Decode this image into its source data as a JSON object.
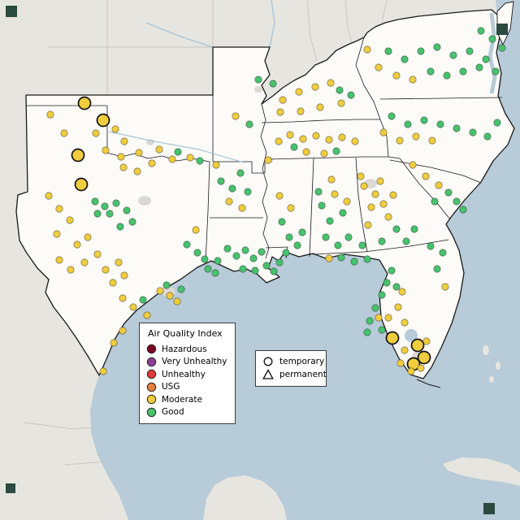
{
  "map": {
    "ocean_color": "#b7cbd8",
    "land_color": "#e7e5df",
    "land_border_color": "#c8c5bf",
    "focus_fill": "#fcfbf8",
    "focus_border_color": "#1a1a1a",
    "river_color": "#a9c6d7",
    "urban_color": "#dbd9d2",
    "corner_marker_color": "#2b4a40"
  },
  "aqi_colors": {
    "hazardous": "#7e0023",
    "very_unhealthy": "#8f3f97",
    "unhealthy": "#e03a3a",
    "usg": "#ea7e33",
    "moderate": "#f0cd3e",
    "good": "#47c36d"
  },
  "legend_aqi": {
    "title": "Air Quality Index",
    "items": [
      {
        "key": "hazardous",
        "label": "Hazardous"
      },
      {
        "key": "very_unhealthy",
        "label": "Very Unhealthy"
      },
      {
        "key": "unhealthy",
        "label": "Unhealthy"
      },
      {
        "key": "usg",
        "label": "USG"
      },
      {
        "key": "moderate",
        "label": "Moderate"
      },
      {
        "key": "good",
        "label": "Good"
      }
    ]
  },
  "legend_symbols": {
    "items": [
      {
        "symbol": "circle",
        "label": "temporary"
      },
      {
        "symbol": "triangle",
        "label": "permanent"
      }
    ]
  },
  "stations": [
    [
      104,
      127,
      "moderate",
      "t"
    ],
    [
      127,
      148,
      "moderate",
      "t"
    ],
    [
      96,
      191,
      "moderate",
      "t"
    ],
    [
      100,
      227,
      "moderate",
      "t"
    ],
    [
      483,
      416,
      "moderate",
      "t"
    ],
    [
      514,
      425,
      "moderate",
      "t"
    ],
    [
      522,
      440,
      "moderate",
      "t"
    ],
    [
      509,
      448,
      "moderate",
      "t"
    ],
    [
      62,
      141,
      "moderate"
    ],
    [
      79,
      164,
      "moderate"
    ],
    [
      118,
      164,
      "moderate"
    ],
    [
      142,
      159,
      "moderate"
    ],
    [
      153,
      174,
      "moderate"
    ],
    [
      130,
      185,
      "moderate"
    ],
    [
      149,
      193,
      "moderate"
    ],
    [
      171,
      188,
      "moderate"
    ],
    [
      196,
      184,
      "moderate"
    ],
    [
      152,
      206,
      "moderate"
    ],
    [
      169,
      211,
      "moderate"
    ],
    [
      187,
      201,
      "moderate"
    ],
    [
      212,
      196,
      "moderate"
    ],
    [
      234,
      194,
      "moderate"
    ],
    [
      60,
      241,
      "moderate"
    ],
    [
      73,
      257,
      "moderate"
    ],
    [
      86,
      271,
      "moderate"
    ],
    [
      70,
      288,
      "moderate"
    ],
    [
      95,
      301,
      "moderate"
    ],
    [
      108,
      292,
      "moderate"
    ],
    [
      120,
      313,
      "moderate"
    ],
    [
      104,
      323,
      "moderate"
    ],
    [
      87,
      332,
      "moderate"
    ],
    [
      73,
      320,
      "moderate"
    ],
    [
      130,
      332,
      "moderate"
    ],
    [
      146,
      323,
      "moderate"
    ],
    [
      153,
      339,
      "moderate"
    ],
    [
      139,
      348,
      "moderate"
    ],
    [
      151,
      367,
      "moderate"
    ],
    [
      164,
      378,
      "moderate"
    ],
    [
      181,
      388,
      "moderate"
    ],
    [
      151,
      407,
      "moderate"
    ],
    [
      140,
      422,
      "moderate"
    ],
    [
      127,
      457,
      "moderate"
    ],
    [
      197,
      358,
      "moderate"
    ],
    [
      209,
      364,
      "moderate"
    ],
    [
      218,
      371,
      "moderate"
    ],
    [
      241,
      283,
      "moderate"
    ],
    [
      266,
      203,
      "moderate"
    ],
    [
      282,
      248,
      "moderate"
    ],
    [
      290,
      143,
      "moderate"
    ],
    [
      298,
      256,
      "moderate"
    ],
    [
      330,
      197,
      "moderate"
    ],
    [
      343,
      174,
      "moderate"
    ],
    [
      357,
      166,
      "moderate"
    ],
    [
      373,
      171,
      "moderate"
    ],
    [
      389,
      167,
      "moderate"
    ],
    [
      405,
      172,
      "moderate"
    ],
    [
      421,
      169,
      "moderate"
    ],
    [
      437,
      174,
      "moderate"
    ],
    [
      377,
      187,
      "moderate"
    ],
    [
      399,
      189,
      "moderate"
    ],
    [
      348,
      123,
      "moderate"
    ],
    [
      368,
      113,
      "moderate"
    ],
    [
      388,
      107,
      "moderate"
    ],
    [
      407,
      102,
      "moderate"
    ],
    [
      370,
      137,
      "moderate"
    ],
    [
      394,
      132,
      "moderate"
    ],
    [
      420,
      127,
      "moderate"
    ],
    [
      345,
      138,
      "moderate"
    ],
    [
      358,
      256,
      "moderate"
    ],
    [
      344,
      241,
      "moderate"
    ],
    [
      412,
      239,
      "moderate"
    ],
    [
      427,
      248,
      "moderate"
    ],
    [
      408,
      221,
      "moderate"
    ],
    [
      448,
      229,
      "moderate"
    ],
    [
      462,
      239,
      "moderate"
    ],
    [
      457,
      255,
      "moderate"
    ],
    [
      472,
      251,
      "moderate"
    ],
    [
      478,
      267,
      "moderate"
    ],
    [
      453,
      277,
      "moderate"
    ],
    [
      444,
      217,
      "moderate"
    ],
    [
      468,
      223,
      "moderate"
    ],
    [
      484,
      240,
      "moderate"
    ],
    [
      508,
      203,
      "moderate"
    ],
    [
      524,
      217,
      "moderate"
    ],
    [
      540,
      228,
      "moderate"
    ],
    [
      472,
      163,
      "moderate"
    ],
    [
      492,
      173,
      "moderate"
    ],
    [
      512,
      168,
      "moderate"
    ],
    [
      532,
      173,
      "moderate"
    ],
    [
      488,
      93,
      "moderate"
    ],
    [
      508,
      98,
      "moderate"
    ],
    [
      466,
      83,
      "moderate"
    ],
    [
      452,
      61,
      "moderate"
    ],
    [
      405,
      318,
      "moderate"
    ],
    [
      495,
      359,
      "moderate"
    ],
    [
      490,
      378,
      "moderate"
    ],
    [
      478,
      391,
      "moderate"
    ],
    [
      498,
      397,
      "moderate"
    ],
    [
      548,
      353,
      "moderate"
    ],
    [
      466,
      391,
      "moderate"
    ],
    [
      498,
      431,
      "moderate"
    ],
    [
      493,
      447,
      "moderate"
    ],
    [
      506,
      457,
      "moderate"
    ],
    [
      518,
      453,
      "moderate"
    ],
    [
      525,
      420,
      "moderate"
    ],
    [
      219,
      187,
      "good"
    ],
    [
      246,
      198,
      "good"
    ],
    [
      117,
      248,
      "good"
    ],
    [
      129,
      254,
      "good"
    ],
    [
      143,
      250,
      "good"
    ],
    [
      135,
      263,
      "good"
    ],
    [
      156,
      259,
      "good"
    ],
    [
      163,
      273,
      "good"
    ],
    [
      148,
      279,
      "good"
    ],
    [
      120,
      263,
      "good"
    ],
    [
      205,
      351,
      "good"
    ],
    [
      223,
      356,
      "good"
    ],
    [
      230,
      301,
      "good"
    ],
    [
      243,
      311,
      "good"
    ],
    [
      256,
      331,
      "good"
    ],
    [
      268,
      321,
      "good"
    ],
    [
      252,
      319,
      "good"
    ],
    [
      176,
      369,
      "good"
    ],
    [
      280,
      306,
      "good"
    ],
    [
      291,
      315,
      "good"
    ],
    [
      302,
      308,
      "good"
    ],
    [
      312,
      318,
      "good"
    ],
    [
      322,
      310,
      "good"
    ],
    [
      299,
      331,
      "good"
    ],
    [
      314,
      333,
      "good"
    ],
    [
      328,
      327,
      "good"
    ],
    [
      337,
      334,
      "good"
    ],
    [
      344,
      323,
      "good"
    ],
    [
      265,
      336,
      "good"
    ],
    [
      272,
      223,
      "good"
    ],
    [
      286,
      232,
      "good"
    ],
    [
      296,
      213,
      "good"
    ],
    [
      305,
      236,
      "good"
    ],
    [
      307,
      153,
      "good"
    ],
    [
      318,
      98,
      "good"
    ],
    [
      347,
      273,
      "good"
    ],
    [
      356,
      292,
      "good"
    ],
    [
      352,
      311,
      "good"
    ],
    [
      366,
      302,
      "good"
    ],
    [
      372,
      286,
      "good"
    ],
    [
      362,
      181,
      "good"
    ],
    [
      414,
      186,
      "good"
    ],
    [
      336,
      103,
      "good"
    ],
    [
      418,
      111,
      "good"
    ],
    [
      432,
      117,
      "good"
    ],
    [
      396,
      253,
      "good"
    ],
    [
      406,
      272,
      "good"
    ],
    [
      401,
      292,
      "good"
    ],
    [
      416,
      302,
      "good"
    ],
    [
      422,
      262,
      "good"
    ],
    [
      392,
      236,
      "good"
    ],
    [
      488,
      282,
      "good"
    ],
    [
      470,
      297,
      "good"
    ],
    [
      500,
      297,
      "good"
    ],
    [
      446,
      302,
      "good"
    ],
    [
      510,
      282,
      "good"
    ],
    [
      429,
      292,
      "good"
    ],
    [
      552,
      237,
      "good"
    ],
    [
      562,
      248,
      "good"
    ],
    [
      570,
      258,
      "good"
    ],
    [
      535,
      248,
      "good"
    ],
    [
      482,
      143,
      "good"
    ],
    [
      502,
      153,
      "good"
    ],
    [
      522,
      148,
      "good"
    ],
    [
      542,
      153,
      "good"
    ],
    [
      562,
      158,
      "good"
    ],
    [
      582,
      163,
      "good"
    ],
    [
      600,
      168,
      "good"
    ],
    [
      612,
      151,
      "good"
    ],
    [
      478,
      63,
      "good"
    ],
    [
      498,
      73,
      "good"
    ],
    [
      518,
      63,
      "good"
    ],
    [
      538,
      58,
      "good"
    ],
    [
      558,
      68,
      "good"
    ],
    [
      578,
      63,
      "good"
    ],
    [
      598,
      73,
      "good"
    ],
    [
      610,
      88,
      "good"
    ],
    [
      590,
      83,
      "good"
    ],
    [
      570,
      88,
      "good"
    ],
    [
      550,
      93,
      "good"
    ],
    [
      530,
      88,
      "good"
    ],
    [
      606,
      48,
      "good"
    ],
    [
      592,
      38,
      "good"
    ],
    [
      618,
      59,
      "good"
    ],
    [
      420,
      317,
      "good"
    ],
    [
      436,
      322,
      "good"
    ],
    [
      452,
      319,
      "good"
    ],
    [
      482,
      333,
      "good"
    ],
    [
      476,
      348,
      "good"
    ],
    [
      470,
      363,
      "good"
    ],
    [
      462,
      379,
      "good"
    ],
    [
      455,
      395,
      "good"
    ],
    [
      470,
      406,
      "good"
    ],
    [
      530,
      303,
      "good"
    ],
    [
      538,
      331,
      "good"
    ],
    [
      452,
      409,
      "good"
    ],
    [
      488,
      353,
      "good"
    ],
    [
      545,
      311,
      "good"
    ]
  ]
}
